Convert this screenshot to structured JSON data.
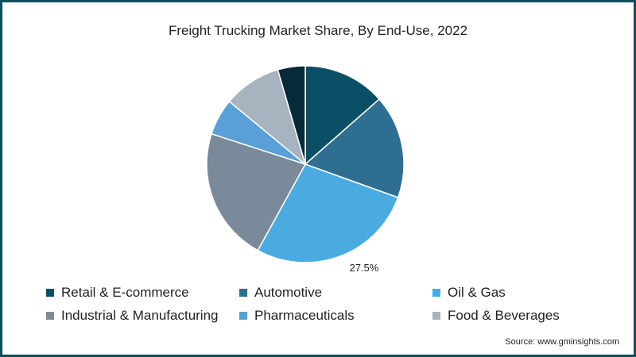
{
  "chart_data": {
    "type": "pie",
    "title": "Freight Trucking Market Share, By End-Use, 2022",
    "series": [
      {
        "name": "Retail & E-commerce",
        "value": 13.5,
        "color": "#0a4f66"
      },
      {
        "name": "Automotive",
        "value": 17.0,
        "color": "#2e6e90"
      },
      {
        "name": "Oil & Gas",
        "value": 27.5,
        "color": "#4aabe0",
        "label": "27.5%"
      },
      {
        "name": "Industrial & Manufacturing",
        "value": 22.0,
        "color": "#7a8a9a"
      },
      {
        "name": "Pharmaceuticals",
        "value": 6.0,
        "color": "#5aa0d8"
      },
      {
        "name": "Food & Beverages",
        "value": 9.5,
        "color": "#a7b3bf"
      },
      {
        "name": "",
        "value": 4.5,
        "color": "#062a3a"
      }
    ],
    "legend_position": "bottom"
  },
  "source": "Source: www.gminsights.com"
}
